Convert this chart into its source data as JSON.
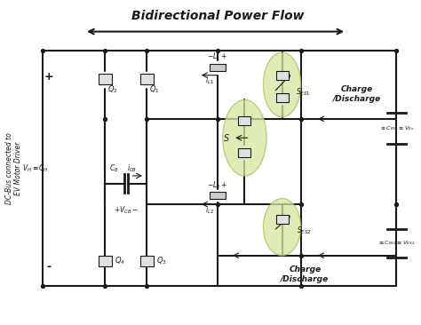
{
  "title": "Bidirectional Power Flow",
  "bg_color": "#ffffff",
  "line_color": "#1a1a1a",
  "highlight_color": "#d4e8a0",
  "fig_width": 4.74,
  "fig_height": 3.66,
  "dpi": 100,
  "labels": {
    "left_side": "DC-Bus connected to\nEV Motor Driver",
    "plus_left": "+",
    "minus_left": "-",
    "VH_CH": "$V_H$ ≡$C_H$",
    "CB_iCB": "$C_B$  $i_{CB}$",
    "VCB": "$+V_{CB}-$",
    "Q2": "$Q_2$",
    "Q1": "$Q_1$",
    "Q4": "$Q_4$",
    "Q3": "$Q_3$",
    "L1_label": "$-L_1+$",
    "iL1": "$i_{L1}$",
    "L2_label": "$-L_2+$",
    "iL2": "$i_{L2}$",
    "S": "$S$",
    "SES1": "$S_{ES1}$",
    "SES2": "$S_{ES2}$",
    "CES1_VES": "≡$C_{ES1}$≡$V_{Es}$",
    "CES2_VES2": "≡$C_{ES2}$≡$V_{ES2}$",
    "charge_discharge1": "Charge\n/Discharge",
    "charge_discharge2": "Charge\n/Discharge"
  }
}
